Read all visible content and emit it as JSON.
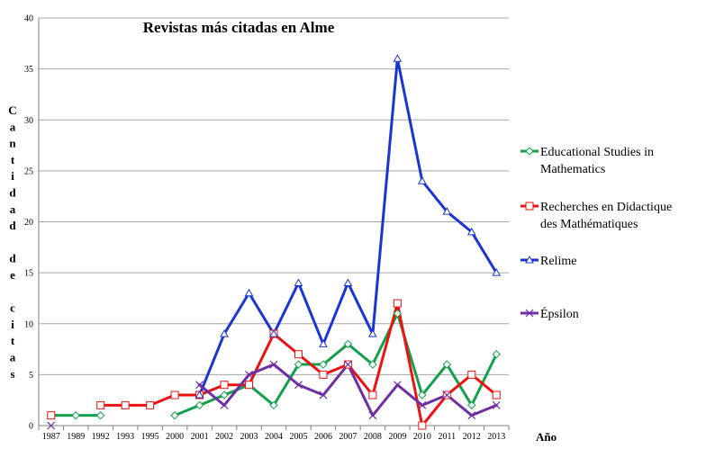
{
  "chart_data": {
    "type": "line",
    "title": "Revistas más citadas en Alme",
    "xlabel": "Año",
    "ylabel": "Cantidad de citas",
    "ylim": [
      0,
      40
    ],
    "yticks": [
      0,
      5,
      10,
      15,
      20,
      25,
      30,
      35,
      40
    ],
    "grid": "horizontal",
    "legend_position": "right",
    "categories": [
      "1987",
      "1989",
      "1992",
      "1993",
      "1995",
      "2000",
      "2001",
      "2002",
      "2003",
      "2004",
      "2005",
      "2006",
      "2007",
      "2008",
      "2009",
      "2010",
      "2011",
      "2012",
      "2013"
    ],
    "series": [
      {
        "name": "Educational Studies in Mathematics",
        "name_lines": [
          "Educational Studies in",
          "Mathematics"
        ],
        "color": "#12a04a",
        "marker": "diamond",
        "values": [
          1,
          1,
          1,
          null,
          null,
          1,
          2,
          3,
          4,
          2,
          6,
          6,
          8,
          6,
          11,
          3,
          6,
          2,
          7
        ]
      },
      {
        "name": "Recherches en Didactique des Mathématiques",
        "name_lines": [
          "Recherches en Didactique",
          "des Mathématiques"
        ],
        "color": "#ee1111",
        "marker": "square",
        "values": [
          1,
          null,
          2,
          2,
          2,
          3,
          3,
          4,
          4,
          9,
          7,
          5,
          6,
          3,
          12,
          0,
          3,
          5,
          3
        ]
      },
      {
        "name": "Relime",
        "name_lines": [
          "Relime"
        ],
        "color": "#1a35d4",
        "marker": "triangle",
        "values": [
          null,
          null,
          null,
          null,
          null,
          null,
          3,
          9,
          13,
          9,
          14,
          8,
          14,
          9,
          36,
          24,
          21,
          19,
          15
        ]
      },
      {
        "name": "Épsilon",
        "name_lines": [
          "Épsilon"
        ],
        "color": "#6e2fa3",
        "marker": "x",
        "values": [
          0,
          null,
          null,
          null,
          null,
          null,
          4,
          2,
          5,
          6,
          4,
          3,
          6,
          1,
          4,
          2,
          3,
          1,
          2
        ]
      }
    ]
  }
}
